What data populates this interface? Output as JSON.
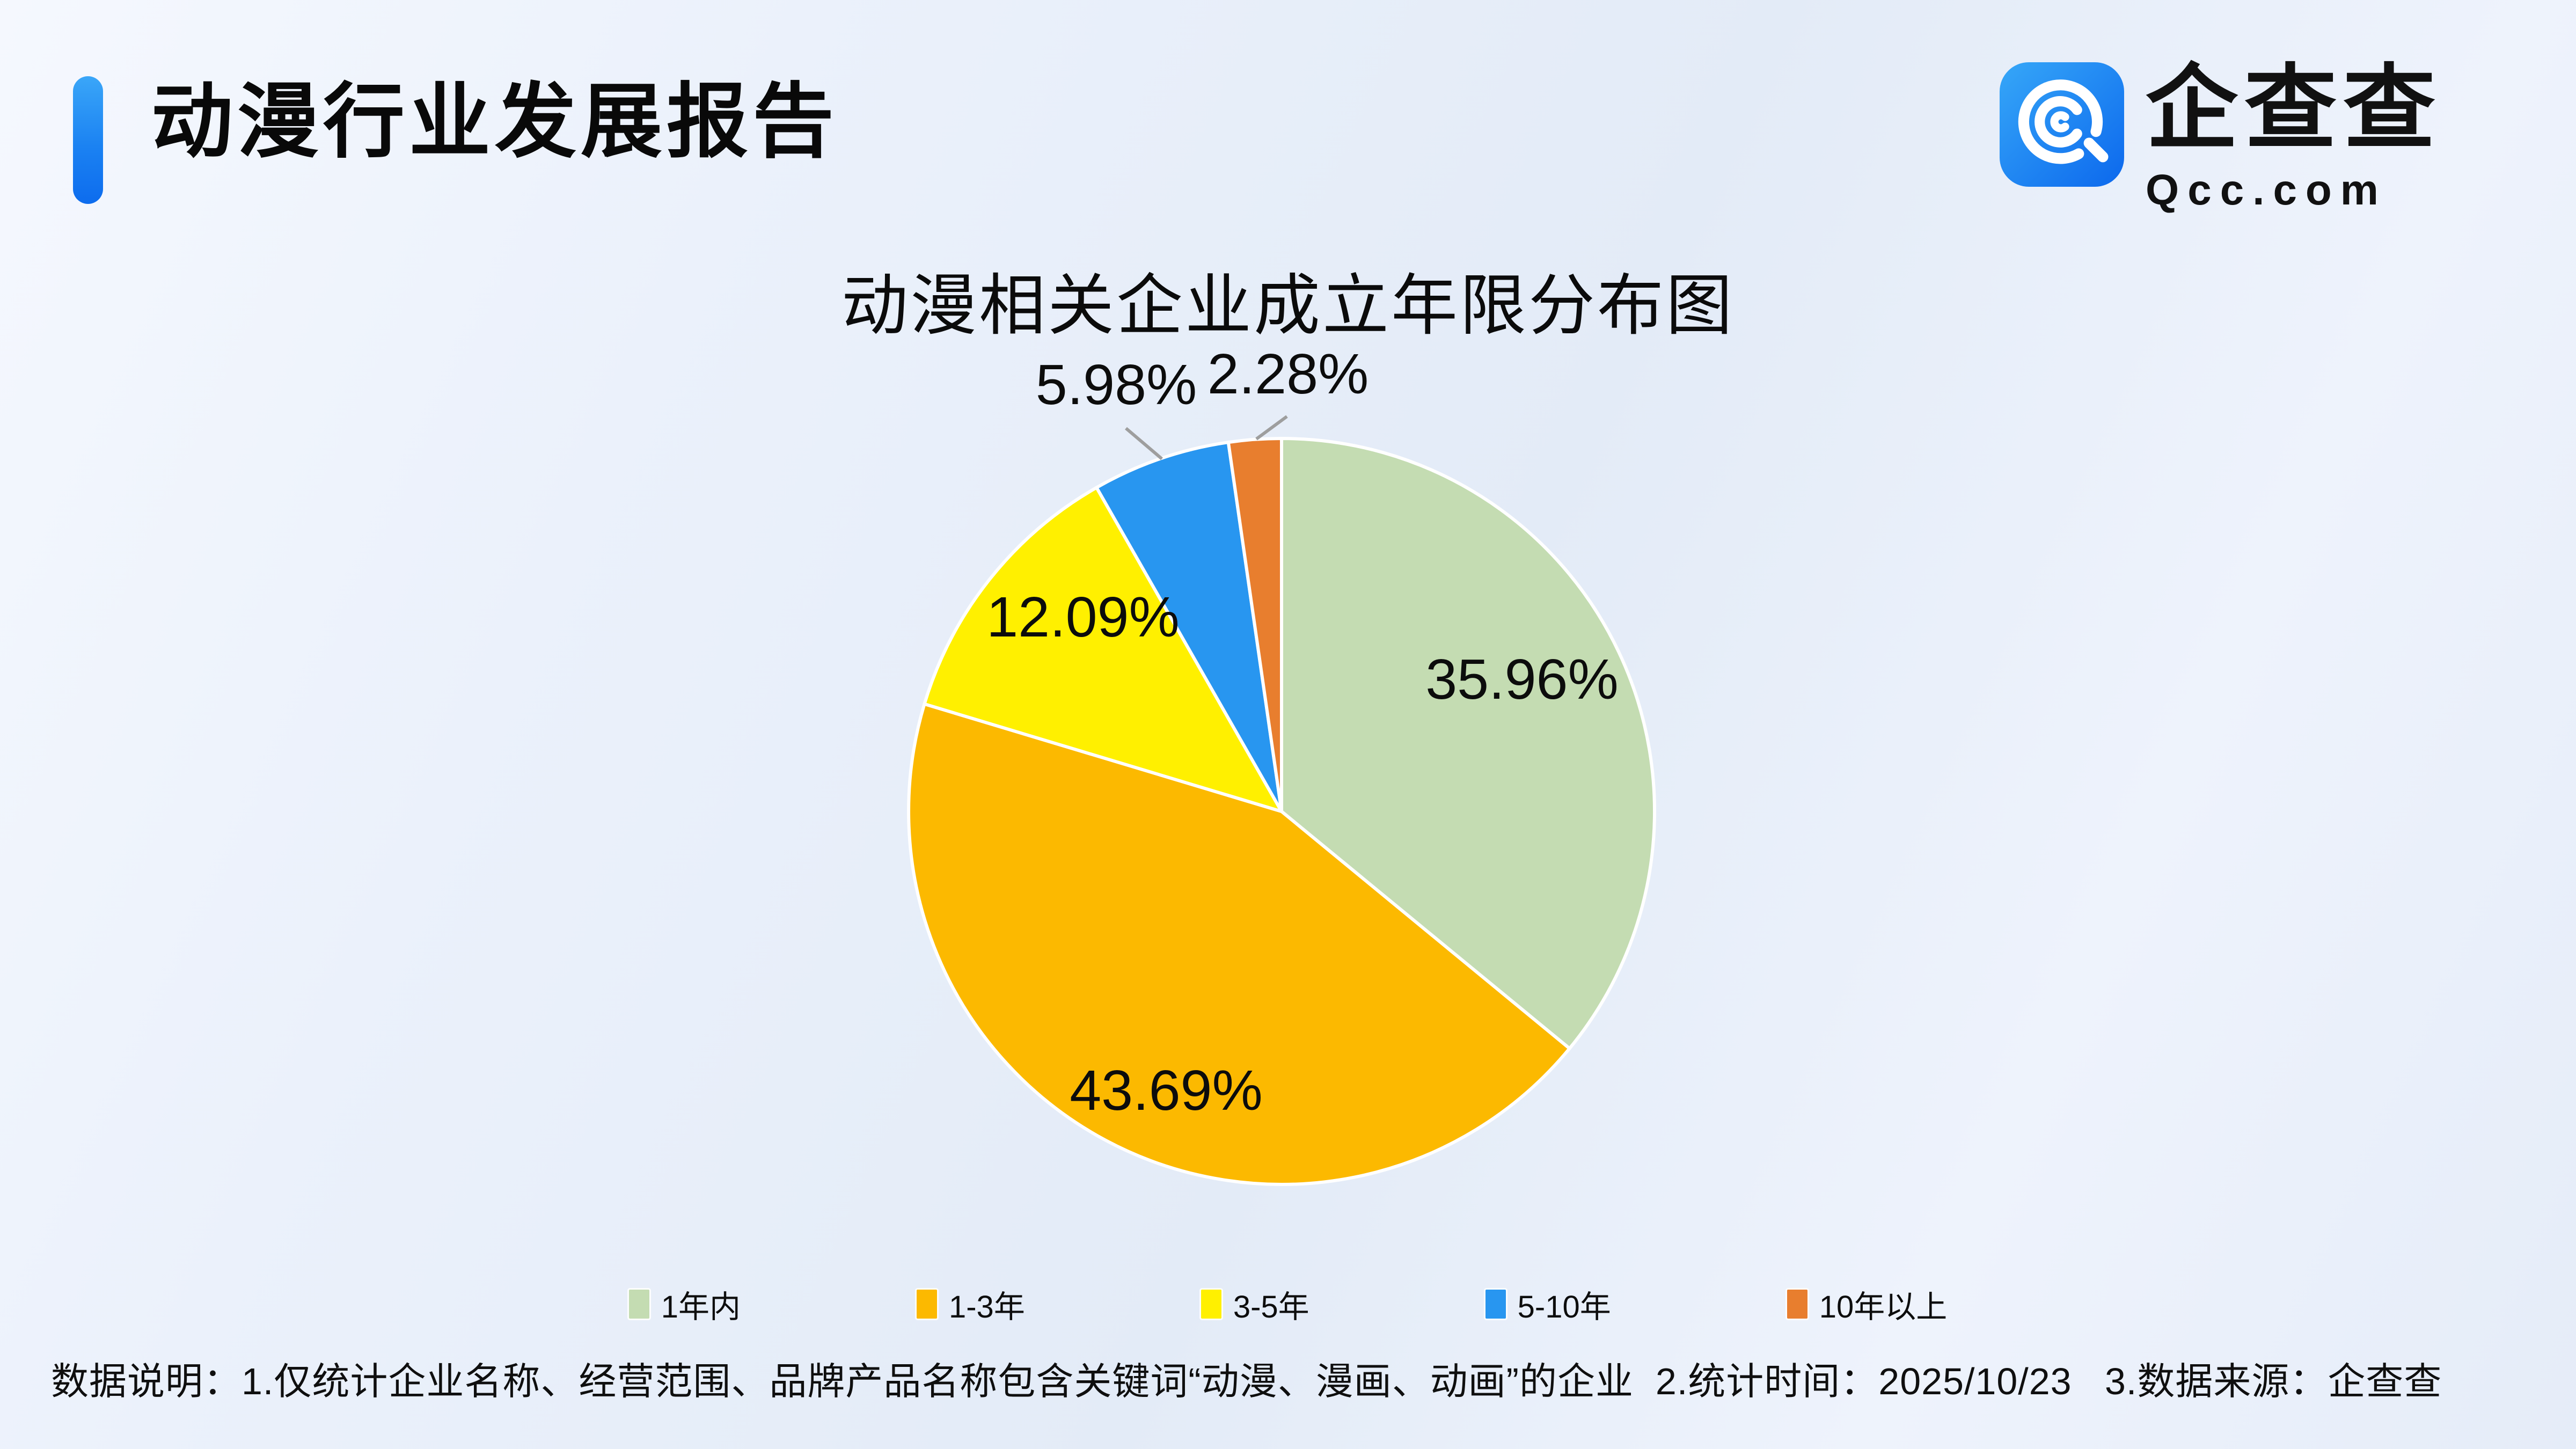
{
  "header": {
    "title": "动漫行业发展报告"
  },
  "logo": {
    "brand": "企查查",
    "domain": "Qcc.com"
  },
  "chart_data": {
    "type": "pie",
    "title": "动漫相关企业成立年限分布图",
    "categories": [
      "1年内",
      "1-3年",
      "3-5年",
      "5-10年",
      "10年以上"
    ],
    "values": [
      35.96,
      43.69,
      12.09,
      5.98,
      2.28
    ],
    "unit": "%",
    "colors": [
      "#c4dcb2",
      "#fcb900",
      "#fff000",
      "#2896f0",
      "#e87e2e"
    ],
    "start_angle_deg": 0,
    "direction": "clockwise",
    "legend_position": "bottom",
    "label_format": "two-decimal-percent",
    "label_color": "#0c0c0c",
    "leader_line_color": "#9e9e9e",
    "slice_border_color": "#ffffff"
  },
  "footer": {
    "note": "数据说明：1.仅统计企业名称、经营范围、品牌产品名称包含关键词“动漫、漫画、动画”的企业  2.统计时间：2025/10/23   3.数据来源：企查查"
  },
  "theme": {
    "accent_blue": "#1b82f2",
    "background_light": "#f5f8fe",
    "background_dark": "#e3ebf7",
    "text_color": "#0d0d0d"
  }
}
